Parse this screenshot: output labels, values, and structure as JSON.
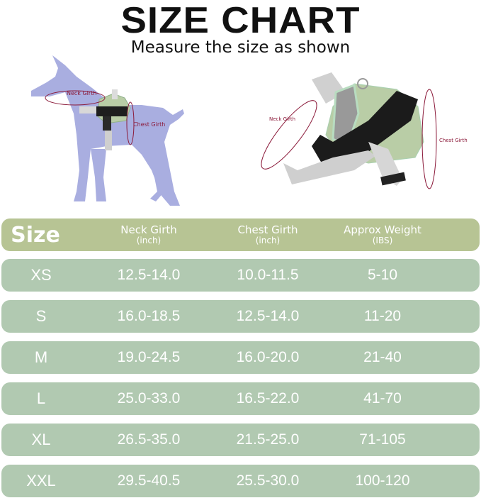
{
  "title": "SIZE CHART",
  "subtitle": "Measure the size as shown",
  "illustration": {
    "dog_labels": {
      "neck": "Neck Girth",
      "chest": "Chest Girth"
    },
    "harness_labels": {
      "neck": "Neck Girth",
      "chest": "Chest Girth"
    },
    "colors": {
      "dog": "#a9aee0",
      "harness": "#b9cda6",
      "marker": "#8b1a3a"
    }
  },
  "table": {
    "header": {
      "size": "Size",
      "columns": [
        {
          "label": "Neck Girth",
          "unit": "(inch)"
        },
        {
          "label": "Chest Girth",
          "unit": "(inch)"
        },
        {
          "label": "Approx Weight",
          "unit": "(IBS)"
        }
      ]
    },
    "rows": [
      {
        "size": "XS",
        "neck": "12.5-14.0",
        "chest": "10.0-11.5",
        "weight": "5-10"
      },
      {
        "size": "S",
        "neck": "16.0-18.5",
        "chest": "12.5-14.0",
        "weight": "11-20"
      },
      {
        "size": "M",
        "neck": "19.0-24.5",
        "chest": "16.0-20.0",
        "weight": "21-40"
      },
      {
        "size": "L",
        "neck": "25.0-33.0",
        "chest": "16.5-22.0",
        "weight": "41-70"
      },
      {
        "size": "XL",
        "neck": "26.5-35.0",
        "chest": "21.5-25.0",
        "weight": "71-105"
      },
      {
        "size": "XXL",
        "neck": "29.5-40.5",
        "chest": "25.5-30.0",
        "weight": "100-120"
      }
    ],
    "colors": {
      "header": "#b7c494",
      "row": "#b1c9b1",
      "text": "#ffffff"
    }
  }
}
